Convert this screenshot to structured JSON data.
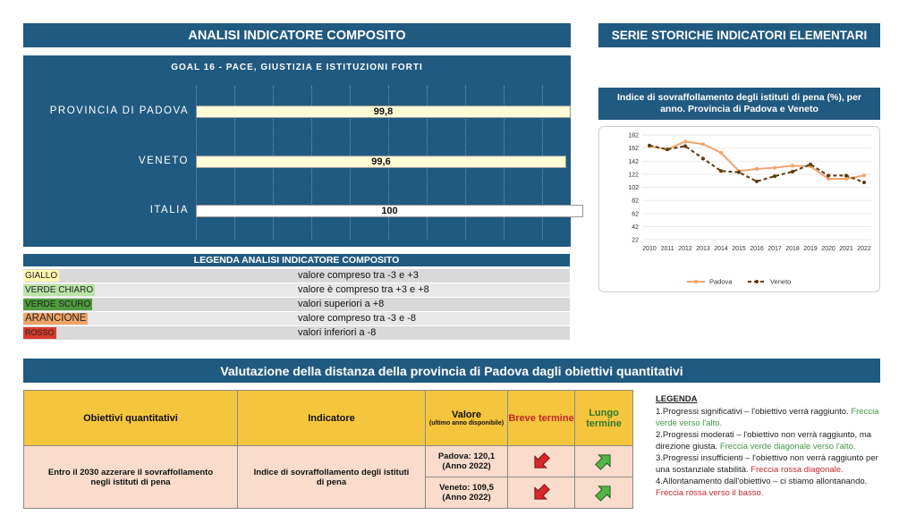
{
  "headers": {
    "composite": "ANALISI INDICATORE COMPOSITO",
    "series": "SERIE STORICHE INDICATORI ELEMENTARI",
    "evaluation": "Valutazione della distanza della provincia di Padova dagli obiettivi quantitativi"
  },
  "composite": {
    "goal": "GOAL 16 - PACE, GIUSTIZIA E ISTITUZIONI FORTI",
    "rows": [
      {
        "label": "PROVINCIA DI PADOVA",
        "value_label": "99,8",
        "value": 99.8,
        "color": "#fffcd6"
      },
      {
        "label": "VENETO",
        "value_label": "99,6",
        "value": 99.6,
        "color": "#fffcd6"
      },
      {
        "label": "ITALIA",
        "value_label": "100",
        "value": 100,
        "color": "#ffffff"
      }
    ]
  },
  "legend": {
    "title": "LEGENDA ANALISI INDICATORE COMPOSITO",
    "items": [
      {
        "key": "GIALLO",
        "color": "#fff7b0",
        "text": "valore compreso tra -3 e +3"
      },
      {
        "key": "VERDE CHIARO",
        "color": "#b9e3a6",
        "text": "valore è compreso tra +3 e +8"
      },
      {
        "key": "VERDE SCURO",
        "color": "#4e9a3c",
        "text": "valori superiori a +8"
      },
      {
        "key": "ARANCIONE",
        "color": "#f0a46a",
        "text": "valore compreso tra -3 e -8"
      },
      {
        "key": "ROSSO",
        "color": "#d83a2e",
        "text": "valori inferiori a -8"
      }
    ]
  },
  "chart_data": {
    "type": "line",
    "title": "Indice di sovraffollamento degli istituti di pena (%), per anno. Provincia di Padova e Veneto",
    "x": [
      "2010",
      "2011",
      "2012",
      "2013",
      "2014",
      "2015",
      "2016",
      "2017",
      "2018",
      "2019",
      "2020",
      "2021",
      "2022"
    ],
    "y_ticks": [
      "182",
      "162",
      "142",
      "122",
      "102",
      "82",
      "62",
      "42",
      "22"
    ],
    "ylim": [
      22,
      182
    ],
    "series": [
      {
        "name": "Padova",
        "color": "#f0a56c",
        "dashed": false,
        "values": [
          165,
          160,
          172,
          168,
          155,
          127,
          130,
          132,
          135,
          134,
          115,
          115,
          120.1
        ]
      },
      {
        "name": "Veneto",
        "color": "#5a3a0e",
        "dashed": true,
        "values": [
          166,
          160,
          165,
          146,
          127,
          125,
          111,
          119,
          126,
          137,
          120,
          120,
          109.5
        ]
      }
    ],
    "legend": [
      "Padova",
      "Veneto"
    ]
  },
  "table": {
    "headers": {
      "obiettivi": "Obiettivi quantitativi",
      "indicatore": "Indicatore",
      "valore": "Valore",
      "valore_note": "(ultimo anno disponibile)",
      "breve": "Breve termine",
      "lungo": "Lungo termine"
    },
    "objective": "Entro il 2030 azzerare il sovraffollamento negli istituti di pena",
    "indicator": "Indice di sovraffollamento degli istituti di pena",
    "rows": [
      {
        "valore_line1": "Padova: 120,1",
        "valore_line2": "(Anno 2022)",
        "breve": "red-arrow-down-icon",
        "lungo": "green-arrow-up-icon"
      },
      {
        "valore_line1": "Veneto: 109,5",
        "valore_line2": "(Anno 2022)",
        "breve": "red-arrow-down-icon",
        "lungo": "green-arrow-up-icon"
      }
    ]
  },
  "legenda": {
    "title": "LEGENDA",
    "item1": "1.Progressi significativi – l'obiettivo verrà raggiunto.",
    "item1_note": "Freccia verde verso l'alto.",
    "item2": "2.Progressi moderati – l'obiettivo non verrà raggiunto, ma direzione giusta.",
    "item2_note": "Freccia verde diagonale verso l'alto.",
    "item3": "3.Progressi insufficienti – l'obiettivo non verrà raggiunto per una sostanziale stabilità.",
    "item3_note": "Freccia rossa diagonale.",
    "item4": "4.Allontanamento dall'obiettivo – ci stiamo allontanando.",
    "item4_note": "Freccia rossa verso il basso."
  }
}
